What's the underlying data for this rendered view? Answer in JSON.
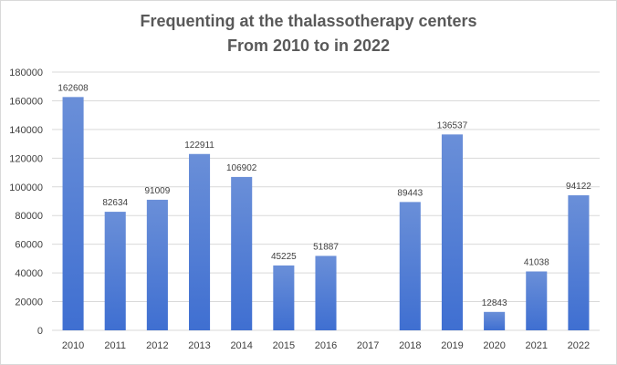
{
  "chart_data": {
    "type": "bar",
    "title": [
      "Frequenting at the thalassotherapy  centers",
      "From 2010 to in 2022"
    ],
    "categories": [
      "2010",
      "2011",
      "2012",
      "2013",
      "2014",
      "2015",
      "2016",
      "2017",
      "2018",
      "2019",
      "2020",
      "2021",
      "2022"
    ],
    "values": [
      162608,
      82634,
      91009,
      122911,
      106902,
      45225,
      51887,
      null,
      89443,
      136537,
      12843,
      41038,
      94122
    ],
    "data_labels": [
      "162608",
      "82634",
      "91009",
      "122911",
      "106902",
      "45225",
      "51887",
      "",
      "89443",
      "136537",
      "12843",
      "41038",
      "94122"
    ],
    "yticks": [
      0,
      20000,
      40000,
      60000,
      80000,
      100000,
      120000,
      140000,
      160000,
      180000
    ],
    "ytick_labels": [
      "0",
      "20000",
      "40000",
      "60000",
      "80000",
      "100000",
      "120000",
      "140000",
      "160000",
      "180000"
    ],
    "ylim": [
      0,
      180000
    ],
    "xlabel": "",
    "ylabel": "",
    "grid": true,
    "legend": false,
    "bar_color_top": "#6a8fd8",
    "bar_color_bottom": "#3f6fd1",
    "grid_color": "#d9d9d9"
  }
}
